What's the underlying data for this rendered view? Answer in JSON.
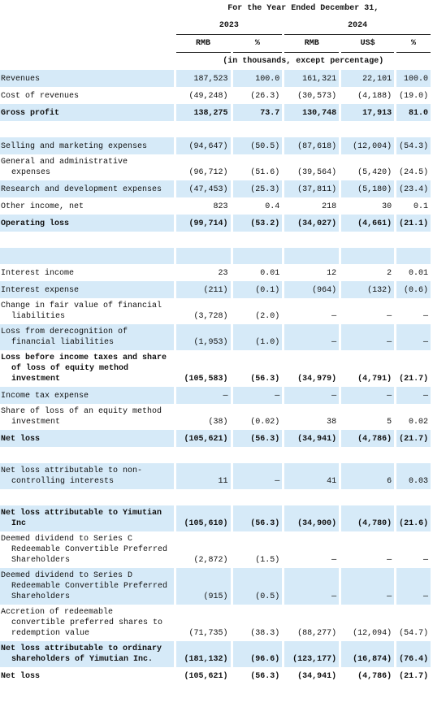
{
  "header": {
    "period": "For the Year Ended December 31,",
    "years": [
      "2023",
      "2024"
    ],
    "columns": [
      "RMB",
      "%",
      "RMB",
      "US$",
      "%"
    ],
    "unit_note": "(in thousands, except percentage)"
  },
  "table": {
    "sections": [
      [
        {
          "label": "Revenues",
          "values": [
            "187,523",
            "100.0",
            "161,321",
            "22,101",
            "100.0"
          ]
        },
        {
          "label": "Cost of revenues",
          "values": [
            "(49,248)",
            "(26.3)",
            "(30,573)",
            "(4,188)",
            "(19.0)"
          ]
        },
        {
          "label": "Gross profit",
          "values": [
            "138,275",
            "73.7",
            "130,748",
            "17,913",
            "81.0"
          ],
          "bold": true
        }
      ],
      [
        {
          "label": "Selling and marketing expenses",
          "values": [
            "(94,647)",
            "(50.5)",
            "(87,618)",
            "(12,004)",
            "(54.3)"
          ]
        },
        {
          "label": "General and administrative expenses",
          "values": [
            "(96,712)",
            "(51.6)",
            "(39,564)",
            "(5,420)",
            "(24.5)"
          ]
        },
        {
          "label": "Research and development expenses",
          "values": [
            "(47,453)",
            "(25.3)",
            "(37,811)",
            "(5,180)",
            "(23.4)"
          ]
        },
        {
          "label": "Other income, net",
          "values": [
            "823",
            "0.4",
            "218",
            "30",
            "0.1"
          ]
        },
        {
          "label": "Operating loss",
          "values": [
            "(99,714)",
            "(53.2)",
            "(34,027)",
            "(4,661)",
            "(21.1)"
          ],
          "bold": true
        }
      ],
      [
        {
          "label": "Interest income",
          "values": [
            "23",
            "0.01",
            "12",
            "2",
            "0.01"
          ]
        },
        {
          "label": "Interest expense",
          "values": [
            "(211)",
            "(0.1)",
            "(964)",
            "(132)",
            "(0.6)"
          ]
        },
        {
          "label": "Change in fair value of financial liabilities",
          "values": [
            "(3,728)",
            "(2.0)",
            "—",
            "—",
            "—"
          ]
        },
        {
          "label": "Loss from derecognition of financial liabilities",
          "values": [
            "(1,953)",
            "(1.0)",
            "—",
            "—",
            "—"
          ]
        },
        {
          "label": "Loss before income taxes and share of loss of equity method investment",
          "values": [
            "(105,583)",
            "(56.3)",
            "(34,979)",
            "(4,791)",
            "(21.7)"
          ],
          "bold": true
        },
        {
          "label": "Income tax expense",
          "values": [
            "—",
            "—",
            "—",
            "—",
            "—"
          ]
        },
        {
          "label": "Share of loss of an equity method investment",
          "values": [
            "(38)",
            "(0.02)",
            "38",
            "5",
            "0.02"
          ]
        },
        {
          "label": "Net loss",
          "values": [
            "(105,621)",
            "(56.3)",
            "(34,941)",
            "(4,786)",
            "(21.7)"
          ],
          "bold": true
        }
      ],
      [
        {
          "label": "Net loss attributable to non-controlling interests",
          "values": [
            "11",
            "—",
            "41",
            "6",
            "0.03"
          ]
        }
      ],
      [
        {
          "label": "Net loss attributable to Yimutian Inc",
          "values": [
            "(105,610)",
            "(56.3)",
            "(34,900)",
            "(4,780)",
            "(21.6)"
          ],
          "bold": true
        },
        {
          "label": "Deemed dividend to Series C Redeemable Convertible Preferred Shareholders",
          "values": [
            "(2,872)",
            "(1.5)",
            "—",
            "—",
            "—"
          ]
        },
        {
          "label": "Deemed dividend to Series D Redeemable Convertible Preferred Shareholders",
          "values": [
            "(915)",
            "(0.5)",
            "—",
            "—",
            "—"
          ]
        },
        {
          "label": "Accretion of redeemable convertible preferred shares to redemption value",
          "values": [
            "(71,735)",
            "(38.3)",
            "(88,277)",
            "(12,094)",
            "(54.7)"
          ]
        },
        {
          "label": "Net loss attributable to ordinary shareholders of Yimutian Inc.",
          "values": [
            "(181,132)",
            "(96.6)",
            "(123,177)",
            "(16,874)",
            "(76.4)"
          ],
          "bold": true
        },
        {
          "label": "Net loss",
          "values": [
            "(105,621)",
            "(56.3)",
            "(34,941)",
            "(4,786)",
            "(21.7)"
          ],
          "bold": true
        }
      ]
    ]
  }
}
